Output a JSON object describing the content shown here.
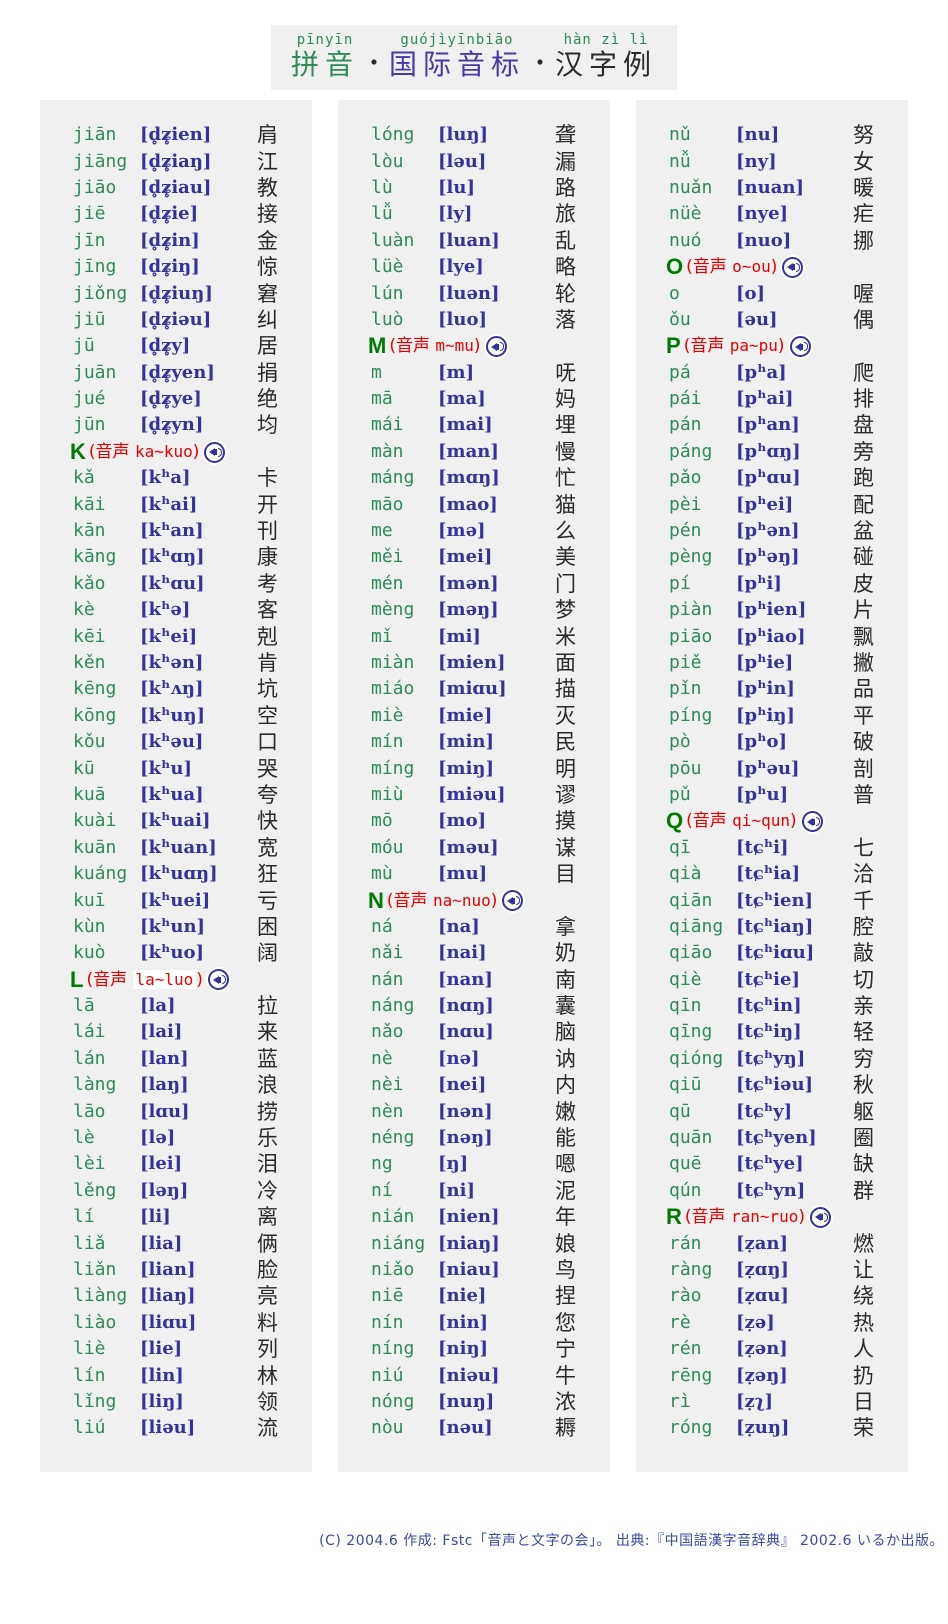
{
  "header": {
    "ruby_pinyin": "pīnyīn",
    "ruby_ipa": "guójìyīnbiāo",
    "ruby_hanzi": "hàn zì lì",
    "title_pinyin": "拼音",
    "title_ipa": "国际音标",
    "title_hanzi": "汉字例",
    "separator": "・"
  },
  "colors": {
    "green": "#2e8b57",
    "dark-green": "#007a00",
    "navy": "#333399",
    "red": "#e60000",
    "title-purple": "#4b37a5",
    "footer-blue": "#3a4aa0",
    "text-dark": "#2a2a2a",
    "panel-bg": "#f0f0f0"
  },
  "columns": [
    {
      "rows": [
        {
          "type": "entry",
          "py": "jiān",
          "ipa": "[d̥ʑ̥ien]",
          "hz": "肩"
        },
        {
          "type": "entry",
          "py": "jiāng",
          "ipa": "[d̥ʑ̥iaŋ]",
          "hz": "江"
        },
        {
          "type": "entry",
          "py": "jiāo",
          "ipa": "[d̥ʑ̥iau]",
          "hz": "教"
        },
        {
          "type": "entry",
          "py": "jiē",
          "ipa": "[d̥ʑ̥ie]",
          "hz": "接"
        },
        {
          "type": "entry",
          "py": "jīn",
          "ipa": "[d̥ʑ̥in]",
          "hz": "金"
        },
        {
          "type": "entry",
          "py": "jīng",
          "ipa": "[d̥ʑ̥iŋ]",
          "hz": "惊"
        },
        {
          "type": "entry",
          "py": "jiǒng",
          "ipa": "[d̥ʑ̥iuŋ]",
          "hz": "窘"
        },
        {
          "type": "entry",
          "py": "jiū",
          "ipa": "[d̥ʑ̥iəu]",
          "hz": "纠"
        },
        {
          "type": "entry",
          "py": "jū",
          "ipa": "[d̥ʑ̥y]",
          "hz": "居"
        },
        {
          "type": "entry",
          "py": "juān",
          "ipa": "[d̥ʑ̥yen]",
          "hz": "捐"
        },
        {
          "type": "entry",
          "py": "jué",
          "ipa": "[d̥ʑ̥ye]",
          "hz": "绝"
        },
        {
          "type": "entry",
          "py": "jūn",
          "ipa": "[d̥ʑ̥yn]",
          "hz": "均"
        },
        {
          "type": "section",
          "letter": "K",
          "label": "音声",
          "range": "ka~kuo",
          "highlight": false,
          "icon": "speaker-icon"
        },
        {
          "type": "entry",
          "py": "kǎ",
          "ipa": "[kʰa]",
          "hz": "卡"
        },
        {
          "type": "entry",
          "py": "kāi",
          "ipa": "[kʰai]",
          "hz": "开"
        },
        {
          "type": "entry",
          "py": "kān",
          "ipa": "[kʰan]",
          "hz": "刊"
        },
        {
          "type": "entry",
          "py": "kāng",
          "ipa": "[kʰɑŋ]",
          "hz": "康"
        },
        {
          "type": "entry",
          "py": "kǎo",
          "ipa": "[kʰɑu]",
          "hz": "考"
        },
        {
          "type": "entry",
          "py": "kè",
          "ipa": "[kʰə]",
          "hz": "客"
        },
        {
          "type": "entry",
          "py": "kēi",
          "ipa": "[kʰei]",
          "hz": "剋"
        },
        {
          "type": "entry",
          "py": "kěn",
          "ipa": "[kʰən]",
          "hz": "肯"
        },
        {
          "type": "entry",
          "py": "kēng",
          "ipa": "[kʰʌŋ]",
          "hz": "坑"
        },
        {
          "type": "entry",
          "py": "kōng",
          "ipa": "[kʰuŋ]",
          "hz": "空"
        },
        {
          "type": "entry",
          "py": "kǒu",
          "ipa": "[kʰəu]",
          "hz": "口"
        },
        {
          "type": "entry",
          "py": "kū",
          "ipa": "[kʰu]",
          "hz": "哭"
        },
        {
          "type": "entry",
          "py": "kuā",
          "ipa": "[kʰua]",
          "hz": "夸"
        },
        {
          "type": "entry",
          "py": "kuài",
          "ipa": "[kʰuai]",
          "hz": "快"
        },
        {
          "type": "entry",
          "py": "kuān",
          "ipa": "[kʰuan]",
          "hz": "宽"
        },
        {
          "type": "entry",
          "py": "kuáng",
          "ipa": "[kʰuɑŋ]",
          "hz": "狂"
        },
        {
          "type": "entry",
          "py": "kuī",
          "ipa": "[kʰuei]",
          "hz": "亏"
        },
        {
          "type": "entry",
          "py": "kùn",
          "ipa": "[kʰun]",
          "hz": "困"
        },
        {
          "type": "entry",
          "py": "kuò",
          "ipa": "[kʰuo]",
          "hz": "阔"
        },
        {
          "type": "section",
          "letter": "L",
          "label": "音声",
          "range": "la~luo",
          "highlight": true,
          "icon": "speaker-icon"
        },
        {
          "type": "entry",
          "py": "lā",
          "ipa": "[la]",
          "hz": "拉"
        },
        {
          "type": "entry",
          "py": "lái",
          "ipa": "[lai]",
          "hz": "来"
        },
        {
          "type": "entry",
          "py": "lán",
          "ipa": "[lan]",
          "hz": "蓝"
        },
        {
          "type": "entry",
          "py": "làng",
          "ipa": "[laŋ]",
          "hz": "浪"
        },
        {
          "type": "entry",
          "py": "lāo",
          "ipa": "[lɑu]",
          "hz": "捞"
        },
        {
          "type": "entry",
          "py": "lè",
          "ipa": "[lə]",
          "hz": "乐"
        },
        {
          "type": "entry",
          "py": "lèi",
          "ipa": "[lei]",
          "hz": "泪"
        },
        {
          "type": "entry",
          "py": "lěng",
          "ipa": "[ləŋ]",
          "hz": "冷"
        },
        {
          "type": "entry",
          "py": "lí",
          "ipa": "[li]",
          "hz": "离"
        },
        {
          "type": "entry",
          "py": "liǎ",
          "ipa": "[lia]",
          "hz": "俩"
        },
        {
          "type": "entry",
          "py": "liǎn",
          "ipa": "[lian]",
          "hz": "脸"
        },
        {
          "type": "entry",
          "py": "liàng",
          "ipa": "[liaŋ]",
          "hz": "亮"
        },
        {
          "type": "entry",
          "py": "liào",
          "ipa": "[liɑu]",
          "hz": "料"
        },
        {
          "type": "entry",
          "py": "liè",
          "ipa": "[lie]",
          "hz": "列"
        },
        {
          "type": "entry",
          "py": "lín",
          "ipa": "[lin]",
          "hz": "林"
        },
        {
          "type": "entry",
          "py": "lǐng",
          "ipa": "[liŋ]",
          "hz": "领"
        },
        {
          "type": "entry",
          "py": "liú",
          "ipa": "[liəu]",
          "hz": "流"
        }
      ]
    },
    {
      "rows": [
        {
          "type": "entry",
          "py": "lóng",
          "ipa": "[luŋ]",
          "hz": "聋"
        },
        {
          "type": "entry",
          "py": "lòu",
          "ipa": "[ləu]",
          "hz": "漏"
        },
        {
          "type": "entry",
          "py": "lù",
          "ipa": "[lu]",
          "hz": "路"
        },
        {
          "type": "entry",
          "py": "lǚ",
          "ipa": "[ly]",
          "hz": "旅"
        },
        {
          "type": "entry",
          "py": "luàn",
          "ipa": "[luan]",
          "hz": "乱"
        },
        {
          "type": "entry",
          "py": "lüè",
          "ipa": "[lye]",
          "hz": "略"
        },
        {
          "type": "entry",
          "py": "lún",
          "ipa": "[luən]",
          "hz": "轮"
        },
        {
          "type": "entry",
          "py": "luò",
          "ipa": "[luo]",
          "hz": "落"
        },
        {
          "type": "section",
          "letter": "M",
          "label": "音声",
          "range": "m~mu",
          "highlight": false,
          "icon": "speaker-icon"
        },
        {
          "type": "entry",
          "py": "m",
          "ipa": "[m]",
          "hz": "呒"
        },
        {
          "type": "entry",
          "py": "mā",
          "ipa": "[ma]",
          "hz": "妈"
        },
        {
          "type": "entry",
          "py": "mái",
          "ipa": "[mai]",
          "hz": "埋"
        },
        {
          "type": "entry",
          "py": "màn",
          "ipa": "[man]",
          "hz": "慢"
        },
        {
          "type": "entry",
          "py": "máng",
          "ipa": "[mɑŋ]",
          "hz": "忙"
        },
        {
          "type": "entry",
          "py": "māo",
          "ipa": "[mao]",
          "hz": "猫"
        },
        {
          "type": "entry",
          "py": "me",
          "ipa": "[mə]",
          "hz": "么"
        },
        {
          "type": "entry",
          "py": "měi",
          "ipa": "[mei]",
          "hz": "美"
        },
        {
          "type": "entry",
          "py": "mén",
          "ipa": "[mən]",
          "hz": "门"
        },
        {
          "type": "entry",
          "py": "mèng",
          "ipa": "[məŋ]",
          "hz": "梦"
        },
        {
          "type": "entry",
          "py": "mǐ",
          "ipa": "[mi]",
          "hz": "米"
        },
        {
          "type": "entry",
          "py": "miàn",
          "ipa": "[mien]",
          "hz": "面"
        },
        {
          "type": "entry",
          "py": "miáo",
          "ipa": "[miɑu]",
          "hz": "描"
        },
        {
          "type": "entry",
          "py": "miè",
          "ipa": "[mie]",
          "hz": "灭"
        },
        {
          "type": "entry",
          "py": "mín",
          "ipa": "[min]",
          "hz": "民"
        },
        {
          "type": "entry",
          "py": "míng",
          "ipa": "[miŋ]",
          "hz": "明"
        },
        {
          "type": "entry",
          "py": "miù",
          "ipa": "[miəu]",
          "hz": "谬"
        },
        {
          "type": "entry",
          "py": "mō",
          "ipa": "[mo]",
          "hz": "摸"
        },
        {
          "type": "entry",
          "py": "móu",
          "ipa": "[məu]",
          "hz": "谋"
        },
        {
          "type": "entry",
          "py": "mù",
          "ipa": "[mu]",
          "hz": "目"
        },
        {
          "type": "section",
          "letter": "N",
          "label": "音声",
          "range": "na~nuo",
          "highlight": false,
          "icon": "speaker-icon"
        },
        {
          "type": "entry",
          "py": "ná",
          "ipa": "[na]",
          "hz": "拿"
        },
        {
          "type": "entry",
          "py": "nǎi",
          "ipa": "[nai]",
          "hz": "奶"
        },
        {
          "type": "entry",
          "py": "nán",
          "ipa": "[nan]",
          "hz": "南"
        },
        {
          "type": "entry",
          "py": "náng",
          "ipa": "[nɑŋ]",
          "hz": "囊"
        },
        {
          "type": "entry",
          "py": "nǎo",
          "ipa": "[nɑu]",
          "hz": "脑"
        },
        {
          "type": "entry",
          "py": "nè",
          "ipa": "[nə]",
          "hz": "讷"
        },
        {
          "type": "entry",
          "py": "nèi",
          "ipa": "[nei]",
          "hz": "内"
        },
        {
          "type": "entry",
          "py": "nèn",
          "ipa": "[nən]",
          "hz": "嫩"
        },
        {
          "type": "entry",
          "py": "néng",
          "ipa": "[nəŋ]",
          "hz": "能"
        },
        {
          "type": "entry",
          "py": "ng",
          "ipa": "[ŋ]",
          "hz": "嗯"
        },
        {
          "type": "entry",
          "py": "ní",
          "ipa": "[ni]",
          "hz": "泥"
        },
        {
          "type": "entry",
          "py": "nián",
          "ipa": "[nien]",
          "hz": "年"
        },
        {
          "type": "entry",
          "py": "niáng",
          "ipa": "[niaŋ]",
          "hz": "娘"
        },
        {
          "type": "entry",
          "py": "niǎo",
          "ipa": "[niau]",
          "hz": "鸟"
        },
        {
          "type": "entry",
          "py": "niē",
          "ipa": "[nie]",
          "hz": "捏"
        },
        {
          "type": "entry",
          "py": "nín",
          "ipa": "[nin]",
          "hz": "您"
        },
        {
          "type": "entry",
          "py": "níng",
          "ipa": "[niŋ]",
          "hz": "宁"
        },
        {
          "type": "entry",
          "py": "niú",
          "ipa": "[niəu]",
          "hz": "牛"
        },
        {
          "type": "entry",
          "py": "nóng",
          "ipa": "[nuŋ]",
          "hz": "浓"
        },
        {
          "type": "entry",
          "py": "nòu",
          "ipa": "[nəu]",
          "hz": "耨"
        }
      ]
    },
    {
      "rows": [
        {
          "type": "entry",
          "py": "nǔ",
          "ipa": "[nu]",
          "hz": "努"
        },
        {
          "type": "entry",
          "py": "nǚ",
          "ipa": "[ny]",
          "hz": "女"
        },
        {
          "type": "entry",
          "py": "nuǎn",
          "ipa": "[nuan]",
          "hz": "暖"
        },
        {
          "type": "entry",
          "py": "nüè",
          "ipa": "[nye]",
          "hz": "疟"
        },
        {
          "type": "entry",
          "py": "nuó",
          "ipa": "[nuo]",
          "hz": "挪"
        },
        {
          "type": "section",
          "letter": "O",
          "label": "音声",
          "range": "o~ou",
          "highlight": false,
          "icon": "speaker-icon"
        },
        {
          "type": "entry",
          "py": "o",
          "ipa": "[o]",
          "hz": "喔"
        },
        {
          "type": "entry",
          "py": "ǒu",
          "ipa": "[əu]",
          "hz": "偶"
        },
        {
          "type": "section",
          "letter": "P",
          "label": "音声",
          "range": "pa~pu",
          "highlight": false,
          "icon": "speaker-icon"
        },
        {
          "type": "entry",
          "py": "pá",
          "ipa": "[pʰa]",
          "hz": "爬"
        },
        {
          "type": "entry",
          "py": "pái",
          "ipa": "[pʰai]",
          "hz": "排"
        },
        {
          "type": "entry",
          "py": "pán",
          "ipa": "[pʰan]",
          "hz": "盘"
        },
        {
          "type": "entry",
          "py": "páng",
          "ipa": "[pʰɑŋ]",
          "hz": "旁"
        },
        {
          "type": "entry",
          "py": "pǎo",
          "ipa": "[pʰɑu]",
          "hz": "跑"
        },
        {
          "type": "entry",
          "py": "pèi",
          "ipa": "[pʰei]",
          "hz": "配"
        },
        {
          "type": "entry",
          "py": "pén",
          "ipa": "[pʰən]",
          "hz": "盆"
        },
        {
          "type": "entry",
          "py": "pèng",
          "ipa": "[pʰəŋ]",
          "hz": "碰"
        },
        {
          "type": "entry",
          "py": "pí",
          "ipa": "[pʰi]",
          "hz": "皮"
        },
        {
          "type": "entry",
          "py": "piàn",
          "ipa": "[pʰien]",
          "hz": "片"
        },
        {
          "type": "entry",
          "py": "piāo",
          "ipa": "[pʰiao]",
          "hz": "飘"
        },
        {
          "type": "entry",
          "py": "piě",
          "ipa": "[pʰie]",
          "hz": "撇"
        },
        {
          "type": "entry",
          "py": "pǐn",
          "ipa": "[pʰin]",
          "hz": "品"
        },
        {
          "type": "entry",
          "py": "píng",
          "ipa": "[pʰiŋ]",
          "hz": "平"
        },
        {
          "type": "entry",
          "py": "pò",
          "ipa": "[pʰo]",
          "hz": "破"
        },
        {
          "type": "entry",
          "py": "pōu",
          "ipa": "[pʰəu]",
          "hz": "剖"
        },
        {
          "type": "entry",
          "py": "pǔ",
          "ipa": "[pʰu]",
          "hz": "普"
        },
        {
          "type": "section",
          "letter": "Q",
          "label": "音声",
          "range": "qi~qun",
          "highlight": false,
          "icon": "speaker-icon"
        },
        {
          "type": "entry",
          "py": "qī",
          "ipa": "[tɕʰi]",
          "hz": "七"
        },
        {
          "type": "entry",
          "py": "qià",
          "ipa": "[tɕʰia]",
          "hz": "洽"
        },
        {
          "type": "entry",
          "py": "qiān",
          "ipa": "[tɕʰien]",
          "hz": "千"
        },
        {
          "type": "entry",
          "py": "qiāng",
          "ipa": "[tɕʰiaŋ]",
          "hz": "腔"
        },
        {
          "type": "entry",
          "py": "qiāo",
          "ipa": "[tɕʰiɑu]",
          "hz": "敲"
        },
        {
          "type": "entry",
          "py": "qiè",
          "ipa": "[tɕʰie]",
          "hz": "切"
        },
        {
          "type": "entry",
          "py": "qīn",
          "ipa": "[tɕʰin]",
          "hz": "亲"
        },
        {
          "type": "entry",
          "py": "qīng",
          "ipa": "[tɕʰiŋ]",
          "hz": "轻"
        },
        {
          "type": "entry",
          "py": "qióng",
          "ipa": "[tɕʰyŋ]",
          "hz": "穷"
        },
        {
          "type": "entry",
          "py": "qiū",
          "ipa": "[tɕʰiəu]",
          "hz": "秋"
        },
        {
          "type": "entry",
          "py": "qū",
          "ipa": "[tɕʰy]",
          "hz": "躯"
        },
        {
          "type": "entry",
          "py": "quān",
          "ipa": "[tɕʰyen]",
          "hz": "圈"
        },
        {
          "type": "entry",
          "py": "quē",
          "ipa": "[tɕʰye]",
          "hz": "缺"
        },
        {
          "type": "entry",
          "py": "qún",
          "ipa": "[tɕʰyn]",
          "hz": "群"
        },
        {
          "type": "section",
          "letter": "R",
          "label": "音声",
          "range": "ran~ruo",
          "highlight": false,
          "icon": "speaker-icon"
        },
        {
          "type": "entry",
          "py": "rán",
          "ipa": "[ẓan]",
          "hz": "燃"
        },
        {
          "type": "entry",
          "py": "ràng",
          "ipa": "[ẓɑŋ]",
          "hz": "让"
        },
        {
          "type": "entry",
          "py": "rào",
          "ipa": "[ẓɑu]",
          "hz": "绕"
        },
        {
          "type": "entry",
          "py": "rè",
          "ipa": "[ẓə]",
          "hz": "热"
        },
        {
          "type": "entry",
          "py": "rén",
          "ipa": "[ẓən]",
          "hz": "人"
        },
        {
          "type": "entry",
          "py": "rēng",
          "ipa": "[ẓəŋ]",
          "hz": "扔"
        },
        {
          "type": "entry",
          "py": "rì",
          "ipa": "[ẓʅ]",
          "hz": "日"
        },
        {
          "type": "entry",
          "py": "róng",
          "ipa": "[ẓuŋ]",
          "hz": "荣"
        }
      ]
    }
  ],
  "footer": {
    "text": "(C) 2004.6 作成: Fstc「音声と文字の会」。 出典:『中国語漢字音辞典』 2002.6 いるか出版。"
  }
}
